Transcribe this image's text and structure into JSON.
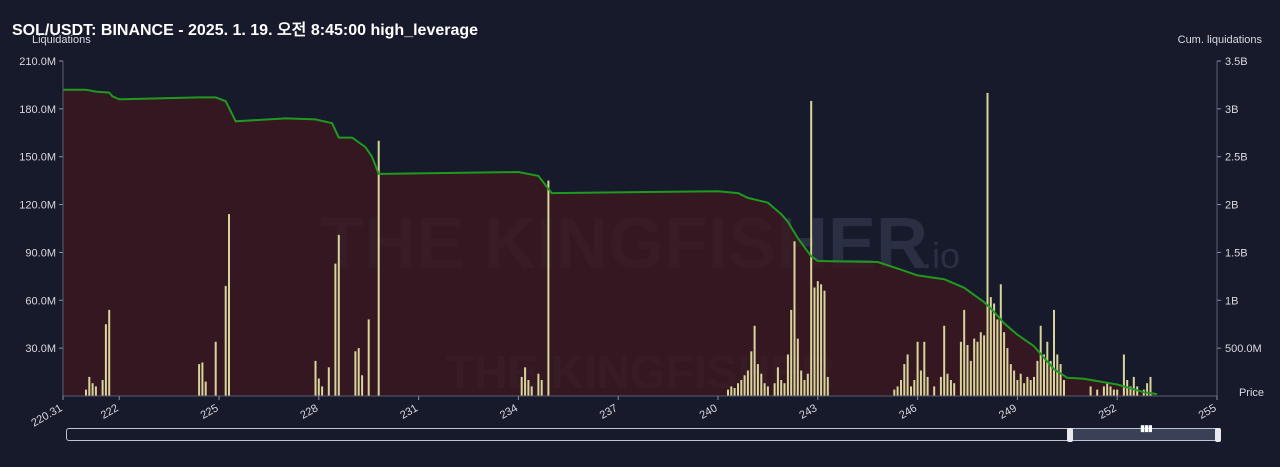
{
  "header": {
    "title": "SOL/USDT: BINANCE - 2025. 1. 19. 오전 8:45:00 high_leverage"
  },
  "axes": {
    "left_label": "Liquidations",
    "right_label": "Cum. liquidations",
    "x_label": "Price"
  },
  "colors": {
    "background": "#161a2a",
    "bar": "#d8d49a",
    "cum_line": "#1f9a1f",
    "cum_fill": "#3a1820",
    "watermark": "#3c3f52"
  },
  "watermark": {
    "text": "THE KINGFISHER",
    "suffix": ".io"
  },
  "chart_data": {
    "type": "bar",
    "x_range": [
      220.31,
      255
    ],
    "x_ticks": [
      {
        "value": 220.31,
        "label": "220.31"
      },
      {
        "value": 222,
        "label": "222"
      },
      {
        "value": 225,
        "label": "225"
      },
      {
        "value": 228,
        "label": "228"
      },
      {
        "value": 231,
        "label": "231"
      },
      {
        "value": 234,
        "label": "234"
      },
      {
        "value": 237,
        "label": "237"
      },
      {
        "value": 240,
        "label": "240"
      },
      {
        "value": 243,
        "label": "243"
      },
      {
        "value": 246,
        "label": "246"
      },
      {
        "value": 249,
        "label": "249"
      },
      {
        "value": 252,
        "label": "252"
      },
      {
        "value": 255,
        "label": "255"
      }
    ],
    "left_axis": {
      "range": [
        0,
        210
      ],
      "unit": "M",
      "ticks": [
        {
          "value": 30,
          "label": "30.0M"
        },
        {
          "value": 60,
          "label": "60.0M"
        },
        {
          "value": 90,
          "label": "90.0M"
        },
        {
          "value": 120,
          "label": "120.0M"
        },
        {
          "value": 150,
          "label": "150.0M"
        },
        {
          "value": 180,
          "label": "180.0M"
        },
        {
          "value": 210,
          "label": "210.0M"
        }
      ]
    },
    "right_axis": {
      "range": [
        0,
        3.5
      ],
      "unit": "B",
      "ticks": [
        {
          "value": 0.5,
          "label": "500.0M"
        },
        {
          "value": 1,
          "label": "1B"
        },
        {
          "value": 1.5,
          "label": "1.5B"
        },
        {
          "value": 2,
          "label": "2B"
        },
        {
          "value": 2.5,
          "label": "2.5B"
        },
        {
          "value": 3,
          "label": "3B"
        },
        {
          "value": 3.5,
          "label": "3.5B"
        }
      ]
    },
    "liquidations": [
      [
        221.0,
        4
      ],
      [
        221.1,
        12
      ],
      [
        221.2,
        8
      ],
      [
        221.3,
        6
      ],
      [
        221.5,
        10
      ],
      [
        221.6,
        45
      ],
      [
        221.7,
        54
      ],
      [
        224.4,
        20
      ],
      [
        224.5,
        21
      ],
      [
        224.6,
        9
      ],
      [
        224.9,
        34
      ],
      [
        225.2,
        69
      ],
      [
        225.3,
        114
      ],
      [
        227.9,
        22
      ],
      [
        228.0,
        11
      ],
      [
        228.1,
        6
      ],
      [
        228.3,
        18
      ],
      [
        228.5,
        83
      ],
      [
        228.6,
        101
      ],
      [
        229.1,
        28
      ],
      [
        229.2,
        30
      ],
      [
        229.3,
        13
      ],
      [
        229.5,
        48
      ],
      [
        229.8,
        160
      ],
      [
        234.1,
        12
      ],
      [
        234.2,
        18
      ],
      [
        234.3,
        10
      ],
      [
        234.4,
        6
      ],
      [
        234.6,
        14
      ],
      [
        234.7,
        10
      ],
      [
        234.9,
        135
      ],
      [
        240.3,
        4
      ],
      [
        240.4,
        6
      ],
      [
        240.5,
        5
      ],
      [
        240.6,
        8
      ],
      [
        240.7,
        10
      ],
      [
        240.8,
        13
      ],
      [
        240.9,
        16
      ],
      [
        241.0,
        28
      ],
      [
        241.1,
        44
      ],
      [
        241.2,
        20
      ],
      [
        241.3,
        14
      ],
      [
        241.4,
        8
      ],
      [
        241.5,
        6
      ],
      [
        241.7,
        8
      ],
      [
        241.8,
        18
      ],
      [
        241.9,
        10
      ],
      [
        242.0,
        8
      ],
      [
        242.1,
        26
      ],
      [
        242.2,
        54
      ],
      [
        242.3,
        97
      ],
      [
        242.4,
        36
      ],
      [
        242.5,
        16
      ],
      [
        242.6,
        10
      ],
      [
        242.7,
        14
      ],
      [
        242.8,
        185
      ],
      [
        242.9,
        68
      ],
      [
        243.0,
        72
      ],
      [
        243.1,
        70
      ],
      [
        243.2,
        66
      ],
      [
        243.3,
        12
      ],
      [
        245.3,
        4
      ],
      [
        245.4,
        6
      ],
      [
        245.5,
        10
      ],
      [
        245.6,
        20
      ],
      [
        245.7,
        26
      ],
      [
        245.8,
        6
      ],
      [
        245.9,
        10
      ],
      [
        246.0,
        34
      ],
      [
        246.1,
        16
      ],
      [
        246.2,
        34
      ],
      [
        246.3,
        12
      ],
      [
        246.5,
        6
      ],
      [
        246.7,
        12
      ],
      [
        246.8,
        44
      ],
      [
        246.9,
        14
      ],
      [
        247.0,
        10
      ],
      [
        247.1,
        8
      ],
      [
        247.3,
        34
      ],
      [
        247.4,
        54
      ],
      [
        247.5,
        32
      ],
      [
        247.6,
        22
      ],
      [
        247.7,
        36
      ],
      [
        247.8,
        34
      ],
      [
        247.9,
        40
      ],
      [
        248.0,
        38
      ],
      [
        248.1,
        190
      ],
      [
        248.2,
        62
      ],
      [
        248.3,
        58
      ],
      [
        248.4,
        48
      ],
      [
        248.5,
        70
      ],
      [
        248.6,
        40
      ],
      [
        248.7,
        30
      ],
      [
        248.8,
        20
      ],
      [
        248.9,
        16
      ],
      [
        249.0,
        10
      ],
      [
        249.1,
        14
      ],
      [
        249.2,
        8
      ],
      [
        249.3,
        12
      ],
      [
        249.4,
        10
      ],
      [
        249.5,
        12
      ],
      [
        249.6,
        22
      ],
      [
        249.7,
        44
      ],
      [
        249.8,
        26
      ],
      [
        249.9,
        34
      ],
      [
        250.0,
        22
      ],
      [
        250.1,
        54
      ],
      [
        250.2,
        26
      ],
      [
        250.3,
        20
      ],
      [
        250.4,
        10
      ],
      [
        251.2,
        6
      ],
      [
        251.4,
        4
      ],
      [
        251.6,
        6
      ],
      [
        251.7,
        8
      ],
      [
        251.8,
        6
      ],
      [
        251.9,
        4
      ],
      [
        252.0,
        4
      ],
      [
        252.2,
        26
      ],
      [
        252.3,
        10
      ],
      [
        252.4,
        6
      ],
      [
        252.5,
        12
      ],
      [
        252.6,
        6
      ],
      [
        252.8,
        4
      ],
      [
        252.9,
        8
      ],
      [
        253.0,
        12
      ]
    ],
    "cumulative": [
      [
        220.31,
        3.2
      ],
      [
        221.0,
        3.2
      ],
      [
        221.3,
        3.18
      ],
      [
        221.7,
        3.17
      ],
      [
        221.8,
        3.13
      ],
      [
        222.0,
        3.1
      ],
      [
        224.4,
        3.12
      ],
      [
        224.9,
        3.12
      ],
      [
        225.2,
        3.08
      ],
      [
        225.5,
        2.87
      ],
      [
        227.0,
        2.9
      ],
      [
        227.9,
        2.89
      ],
      [
        228.4,
        2.85
      ],
      [
        228.6,
        2.7
      ],
      [
        229.0,
        2.7
      ],
      [
        229.4,
        2.6
      ],
      [
        229.6,
        2.5
      ],
      [
        229.8,
        2.32
      ],
      [
        234.0,
        2.34
      ],
      [
        234.6,
        2.3
      ],
      [
        235.0,
        2.12
      ],
      [
        240.0,
        2.14
      ],
      [
        240.6,
        2.12
      ],
      [
        240.9,
        2.07
      ],
      [
        241.5,
        2.02
      ],
      [
        241.9,
        1.9
      ],
      [
        242.1,
        1.82
      ],
      [
        242.4,
        1.65
      ],
      [
        242.8,
        1.46
      ],
      [
        243.0,
        1.41
      ],
      [
        244.8,
        1.4
      ],
      [
        245.5,
        1.32
      ],
      [
        246.0,
        1.26
      ],
      [
        246.8,
        1.22
      ],
      [
        247.4,
        1.13
      ],
      [
        248.0,
        0.98
      ],
      [
        248.3,
        0.88
      ],
      [
        248.6,
        0.76
      ],
      [
        249.0,
        0.64
      ],
      [
        249.5,
        0.52
      ],
      [
        250.1,
        0.28
      ],
      [
        250.5,
        0.19
      ],
      [
        251.0,
        0.18
      ],
      [
        252.0,
        0.12
      ],
      [
        252.8,
        0.04
      ],
      [
        253.2,
        0.02
      ]
    ]
  }
}
